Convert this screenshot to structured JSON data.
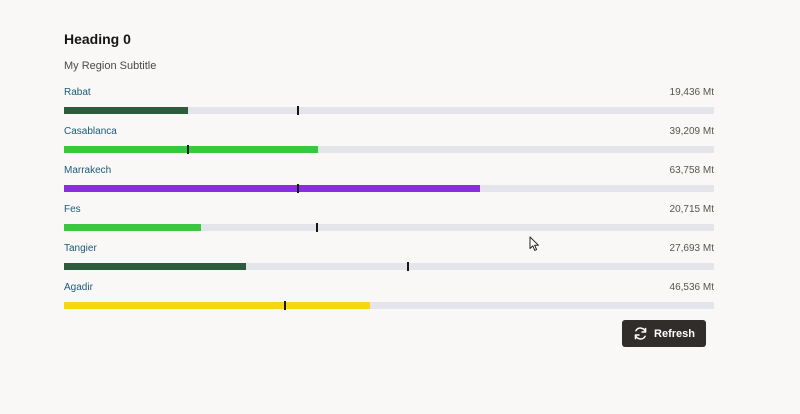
{
  "region": {
    "heading": "Heading 0",
    "subtitle": "My Region Subtitle"
  },
  "items": [
    {
      "label": "Rabat",
      "value": "19,436 Mt",
      "progress": 0.19,
      "target": 0.36,
      "color": "#2d5b3c"
    },
    {
      "label": "Casablanca",
      "value": "39,209 Mt",
      "progress": 0.39,
      "target": 0.19,
      "color": "#39c73d"
    },
    {
      "label": "Marrakech",
      "value": "63,758 Mt",
      "progress": 0.64,
      "target": 0.36,
      "color": "#8b2be2"
    },
    {
      "label": "Fes",
      "value": "20,715 Mt",
      "progress": 0.21,
      "target": 0.39,
      "color": "#39c73d"
    },
    {
      "label": "Tangier",
      "value": "27,693 Mt",
      "progress": 0.28,
      "target": 0.53,
      "color": "#2d5b3c"
    },
    {
      "label": "Agadir",
      "value": "46,536 Mt",
      "progress": 0.47,
      "target": 0.34,
      "color": "#f7d70f"
    }
  ],
  "refresh": {
    "label": "Refresh",
    "icon": "refresh-icon"
  }
}
